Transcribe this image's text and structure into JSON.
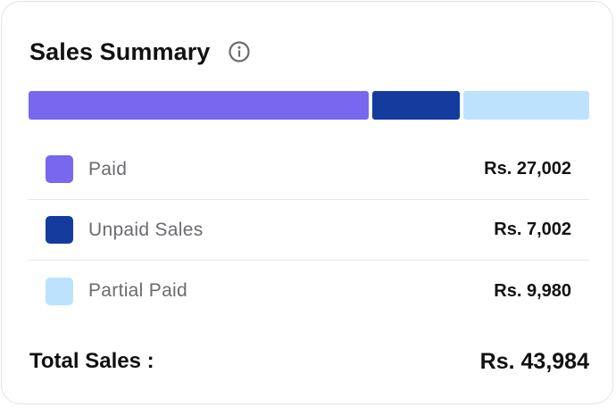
{
  "card": {
    "title": "Sales Summary",
    "info_icon": "info-circle-icon"
  },
  "colors": {
    "paid": "#7967ef",
    "unpaid": "#143c9f",
    "partial": "#bde2fd"
  },
  "bar": {
    "segments": [
      {
        "name": "Paid",
        "value": 27002,
        "color": "#7967ef"
      },
      {
        "name": "Unpaid Sales",
        "value": 7002,
        "color": "#143c9f"
      },
      {
        "name": "Partial Paid",
        "value": 9980,
        "color": "#bde2fd"
      }
    ]
  },
  "breakdown": [
    {
      "label": "Paid",
      "amount": "Rs. 27,002",
      "color": "#7967ef"
    },
    {
      "label": "Unpaid Sales",
      "amount": "Rs. 7,002",
      "color": "#143c9f"
    },
    {
      "label": "Partial Paid",
      "amount": "Rs. 9,980",
      "color": "#bde2fd"
    }
  ],
  "total": {
    "label": "Total Sales :",
    "amount": "Rs. 43,984"
  }
}
